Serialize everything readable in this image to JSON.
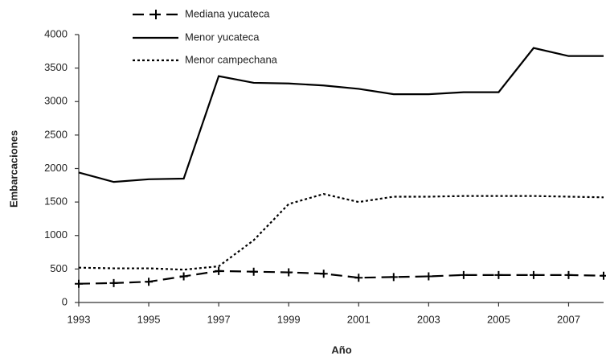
{
  "chart_data": {
    "type": "line",
    "x_label": "Año",
    "y_label": "Embarcaciones",
    "x": [
      1993,
      1994,
      1995,
      1996,
      1997,
      1998,
      1999,
      2000,
      2001,
      2002,
      2003,
      2004,
      2005,
      2006,
      2007,
      2008
    ],
    "series": [
      {
        "name": "Mediana yucateca",
        "color": "#000000",
        "line_style": "dashed",
        "marker": "+",
        "values": [
          280,
          290,
          310,
          390,
          470,
          460,
          450,
          430,
          370,
          380,
          390,
          410,
          410,
          410,
          410,
          400
        ]
      },
      {
        "name": "Menor yucateca",
        "color": "#000000",
        "line_style": "solid",
        "values": [
          1940,
          1800,
          1840,
          1850,
          3380,
          3280,
          3270,
          3240,
          3190,
          3110,
          3110,
          3140,
          3140,
          3800,
          3680,
          3680
        ]
      },
      {
        "name": "Menor campechana",
        "color": "#000000",
        "line_style": "dotted",
        "values": [
          520,
          510,
          510,
          490,
          540,
          930,
          1470,
          1620,
          1500,
          1580,
          1580,
          1590,
          1590,
          1590,
          1580,
          1570
        ]
      }
    ],
    "xlim": [
      1993,
      2008
    ],
    "xticks": [
      1993,
      1995,
      1997,
      1999,
      2001,
      2003,
      2005,
      2007
    ],
    "ylim": [
      0,
      4000
    ],
    "yticks": [
      0,
      500,
      1000,
      1500,
      2000,
      2500,
      3000,
      3500,
      4000
    ],
    "grid": false,
    "legend": "top"
  }
}
